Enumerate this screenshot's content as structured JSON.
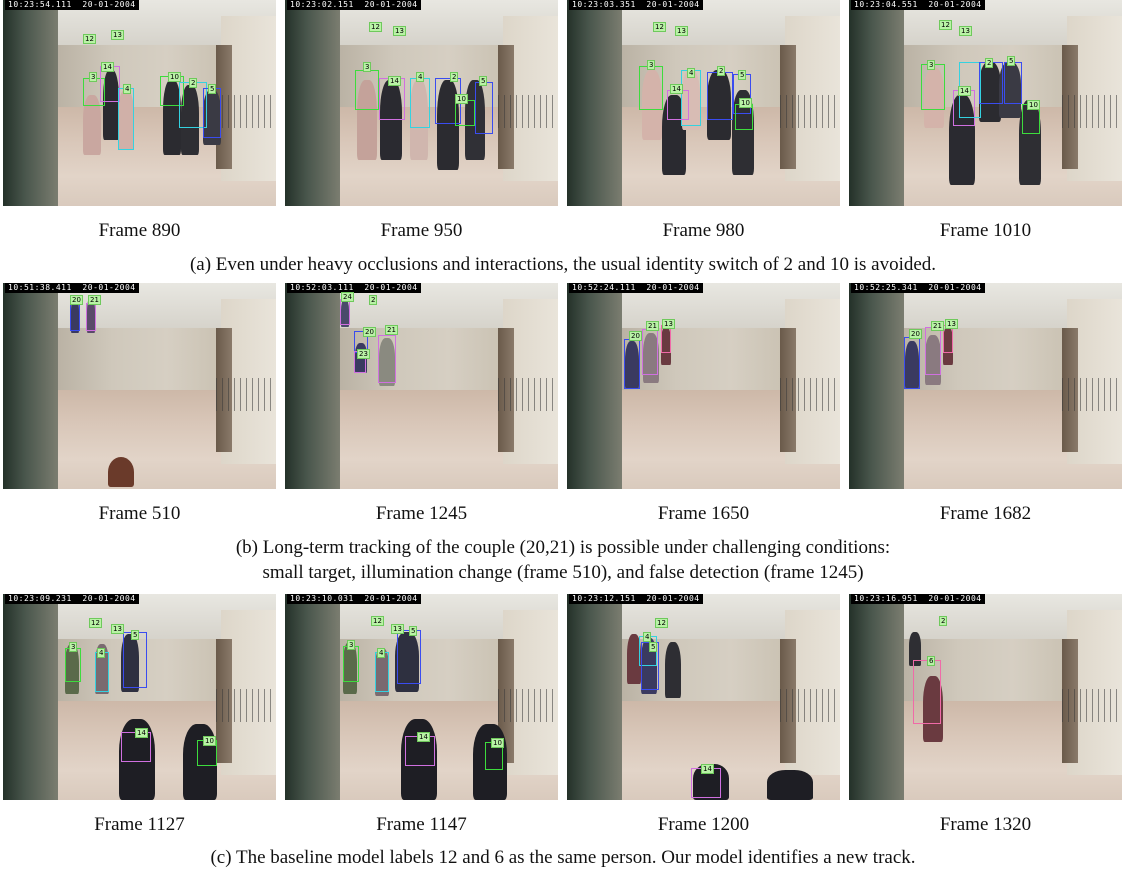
{
  "colors": {
    "green": "#3ddc3d",
    "blue": "#3a4cf0",
    "cyan": "#34d2e0",
    "magenta": "#d070e0",
    "pink": "#f06aa8",
    "tag_bg": "#b9f2a6"
  },
  "rows": [
    {
      "frames": [
        {
          "label": "Frame 890",
          "stamp": "10:23:54.111  20-01-2004",
          "tags": [
            "12",
            "13",
            "14",
            "3",
            "10",
            "4",
            "2",
            "5"
          ]
        },
        {
          "label": "Frame 950",
          "stamp": "10:23:02.151  20-01-2004",
          "tags": [
            "12",
            "13",
            "3",
            "14",
            "4",
            "2",
            "5",
            "10"
          ]
        },
        {
          "label": "Frame 980",
          "stamp": "10:23:03.351  20-01-2004",
          "tags": [
            "12",
            "13",
            "3",
            "4",
            "2",
            "5",
            "14",
            "10"
          ]
        },
        {
          "label": "Frame 1010",
          "stamp": "10:23:04.551  20-01-2004",
          "tags": [
            "12",
            "13",
            "3",
            "2",
            "5",
            "14",
            "10"
          ]
        }
      ],
      "caption": "(a) Even under heavy occlusions and interactions, the usual identity switch of 2 and 10 is avoided."
    },
    {
      "frames": [
        {
          "label": "Frame 510",
          "stamp": "10:51:38.411  20-01-2004",
          "tags": [
            "20",
            "21"
          ]
        },
        {
          "label": "Frame 1245",
          "stamp": "10:52:03.111  20-01-2004",
          "tags": [
            "24",
            "2",
            "20",
            "21",
            "23"
          ]
        },
        {
          "label": "Frame 1650",
          "stamp": "10:52:24.111  20-01-2004",
          "tags": [
            "20",
            "21",
            "13"
          ]
        },
        {
          "label": "Frame 1682",
          "stamp": "10:52:25.341  20-01-2004",
          "tags": [
            "20",
            "21",
            "13"
          ]
        }
      ],
      "caption_line1": "(b) Long-term tracking of the couple (20,21) is possible under challenging conditions:",
      "caption_line2": "small target, illumination change (frame 510), and false detection (frame 1245)"
    },
    {
      "frames": [
        {
          "label": "Frame 1127",
          "stamp": "10:23:09.231  20-01-2004",
          "tags": [
            "12",
            "13",
            "3",
            "4",
            "5",
            "14",
            "10"
          ]
        },
        {
          "label": "Frame 1147",
          "stamp": "10:23:10.031  20-01-2004",
          "tags": [
            "12",
            "13",
            "3",
            "4",
            "5",
            "14",
            "10"
          ]
        },
        {
          "label": "Frame 1200",
          "stamp": "10:23:12.151  20-01-2004",
          "tags": [
            "12",
            "4",
            "5",
            "14"
          ]
        },
        {
          "label": "Frame 1320",
          "stamp": "10:23:16.951  20-01-2004",
          "tags": [
            "2",
            "6"
          ]
        }
      ],
      "caption": "(c) The baseline model labels 12 and 6 as the same person. Our model identifies a new track."
    }
  ]
}
